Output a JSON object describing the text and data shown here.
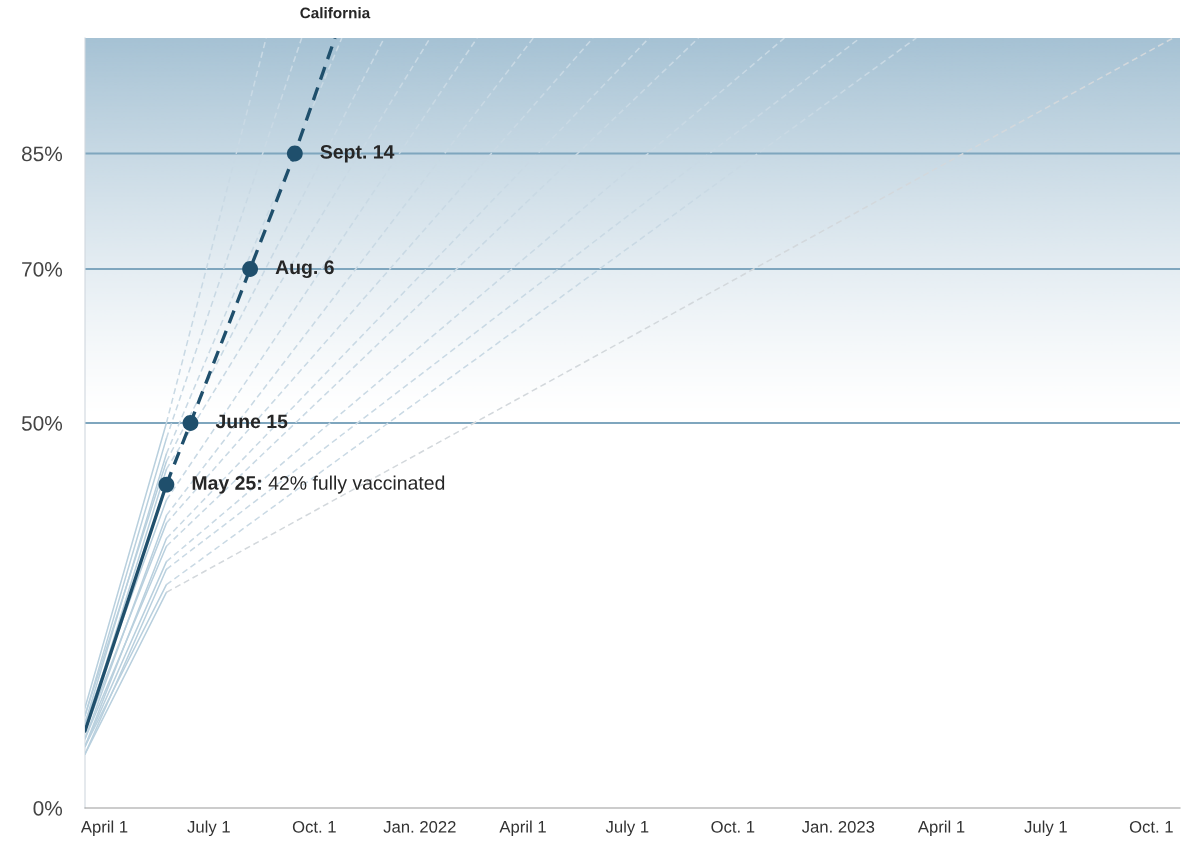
{
  "chart_data": {
    "type": "line",
    "xlim": [
      "2021-03-15",
      "2023-10-26"
    ],
    "xticks": [
      {
        "value": "2021-04-01",
        "label": "April 1"
      },
      {
        "value": "2021-07-01",
        "label": "July 1"
      },
      {
        "value": "2021-10-01",
        "label": "Oct. 1"
      },
      {
        "value": "2022-01-01",
        "label": "Jan. 2022"
      },
      {
        "value": "2022-04-01",
        "label": "April 1"
      },
      {
        "value": "2022-07-01",
        "label": "July 1"
      },
      {
        "value": "2022-10-01",
        "label": "Oct. 1"
      },
      {
        "value": "2023-01-01",
        "label": "Jan. 2023"
      },
      {
        "value": "2023-04-01",
        "label": "April 1"
      },
      {
        "value": "2023-07-01",
        "label": "July 1"
      },
      {
        "value": "2023-10-01",
        "label": "Oct. 1"
      }
    ],
    "ylim": [
      0,
      100
    ],
    "yticks": [
      {
        "value": 0,
        "label": "0%"
      },
      {
        "value": 50,
        "label": "50%"
      },
      {
        "value": 70,
        "label": "70%"
      },
      {
        "value": 85,
        "label": "85%"
      }
    ],
    "grid": false,
    "legend": false,
    "bands": [
      {
        "axis": "y",
        "from": 50,
        "to": 100,
        "color": "#a6c2d4"
      }
    ],
    "ref_lines": [
      {
        "axis": "y",
        "value": 50,
        "color": "#7fa6be"
      },
      {
        "axis": "y",
        "value": 70,
        "color": "#7fa6be"
      },
      {
        "axis": "y",
        "value": 85,
        "color": "#7fa6be"
      }
    ],
    "series": [
      {
        "type": "line",
        "line_style": "solid",
        "color": "#b9d0de",
        "x": [
          "2021-03-15",
          "2021-05-25"
        ],
        "values": [
          13,
          50
        ]
      },
      {
        "type": "line",
        "line_style": "dashed",
        "color": "#c9d9e4",
        "x": [
          "2021-05-25",
          "2021-08-20"
        ],
        "values": [
          50,
          100
        ]
      },
      {
        "type": "line",
        "line_style": "solid",
        "color": "#b9d0de",
        "x": [
          "2021-03-15",
          "2021-05-25"
        ],
        "values": [
          12,
          48
        ]
      },
      {
        "type": "line",
        "line_style": "dashed",
        "color": "#c9d9e4",
        "x": [
          "2021-05-25",
          "2021-09-20"
        ],
        "values": [
          48,
          100
        ]
      },
      {
        "type": "line",
        "line_style": "solid",
        "color": "#b9d0de",
        "x": [
          "2021-03-15",
          "2021-05-25"
        ],
        "values": [
          11,
          46
        ]
      },
      {
        "type": "line",
        "line_style": "dashed",
        "color": "#c9d9e4",
        "x": [
          "2021-05-25",
          "2021-10-25"
        ],
        "values": [
          46,
          100
        ]
      },
      {
        "type": "line",
        "line_style": "solid",
        "color": "#b9d0de",
        "x": [
          "2021-03-15",
          "2021-05-25"
        ],
        "values": [
          12,
          45
        ]
      },
      {
        "type": "line",
        "line_style": "dashed",
        "color": "#c9d9e4",
        "x": [
          "2021-05-25",
          "2021-12-01"
        ],
        "values": [
          45,
          100
        ]
      },
      {
        "type": "line",
        "line_style": "solid",
        "color": "#b9d0de",
        "x": [
          "2021-03-15",
          "2021-05-25"
        ],
        "values": [
          10,
          44
        ]
      },
      {
        "type": "line",
        "line_style": "dashed",
        "color": "#c9d9e4",
        "x": [
          "2021-05-25",
          "2022-01-10"
        ],
        "values": [
          44,
          100
        ]
      },
      {
        "type": "line",
        "line_style": "solid",
        "color": "#b9d0de",
        "x": [
          "2021-03-15",
          "2021-05-25"
        ],
        "values": [
          11,
          40
        ]
      },
      {
        "type": "line",
        "line_style": "dashed",
        "color": "#c9d9e4",
        "x": [
          "2021-05-25",
          "2022-02-20"
        ],
        "values": [
          40,
          100
        ]
      },
      {
        "type": "line",
        "line_style": "solid",
        "color": "#b9d0de",
        "x": [
          "2021-03-15",
          "2021-05-25"
        ],
        "values": [
          9,
          38
        ]
      },
      {
        "type": "line",
        "line_style": "dashed",
        "color": "#c9d9e4",
        "x": [
          "2021-05-25",
          "2022-04-10"
        ],
        "values": [
          38,
          100
        ]
      },
      {
        "type": "line",
        "line_style": "solid",
        "color": "#b9d0de",
        "x": [
          "2021-03-15",
          "2021-05-25"
        ],
        "values": [
          10,
          37
        ]
      },
      {
        "type": "line",
        "line_style": "dashed",
        "color": "#c9d9e4",
        "x": [
          "2021-05-25",
          "2022-06-01"
        ],
        "values": [
          37,
          100
        ]
      },
      {
        "type": "line",
        "line_style": "solid",
        "color": "#b9d0de",
        "x": [
          "2021-03-15",
          "2021-05-25"
        ],
        "values": [
          8,
          35
        ]
      },
      {
        "type": "line",
        "line_style": "dashed",
        "color": "#c9d9e4",
        "x": [
          "2021-05-25",
          "2022-07-20"
        ],
        "values": [
          35,
          100
        ]
      },
      {
        "type": "line",
        "line_style": "solid",
        "color": "#b9d0de",
        "x": [
          "2021-03-15",
          "2021-05-25"
        ],
        "values": [
          9,
          34
        ]
      },
      {
        "type": "line",
        "line_style": "dashed",
        "color": "#c9d9e4",
        "x": [
          "2021-05-25",
          "2022-09-01"
        ],
        "values": [
          34,
          100
        ]
      },
      {
        "type": "line",
        "line_style": "solid",
        "color": "#b9d0de",
        "x": [
          "2021-03-15",
          "2021-05-25"
        ],
        "values": [
          8,
          32
        ]
      },
      {
        "type": "line",
        "line_style": "dashed",
        "color": "#c9d9e4",
        "x": [
          "2021-05-25",
          "2022-11-15"
        ],
        "values": [
          32,
          100
        ]
      },
      {
        "type": "line",
        "line_style": "solid",
        "color": "#b9d0de",
        "x": [
          "2021-03-15",
          "2021-05-25"
        ],
        "values": [
          7,
          31
        ]
      },
      {
        "type": "line",
        "line_style": "dashed",
        "color": "#c9d9e4",
        "x": [
          "2021-05-25",
          "2023-01-20"
        ],
        "values": [
          31,
          100
        ]
      },
      {
        "type": "line",
        "line_style": "solid",
        "color": "#b9d0de",
        "x": [
          "2021-03-15",
          "2021-05-25"
        ],
        "values": [
          8,
          29
        ]
      },
      {
        "type": "line",
        "line_style": "dashed",
        "color": "#c9d9e4",
        "x": [
          "2021-05-25",
          "2023-03-10"
        ],
        "values": [
          29,
          100
        ]
      },
      {
        "type": "line",
        "line_style": "solid",
        "color": "#b9d0de",
        "x": [
          "2021-03-15",
          "2021-05-25"
        ],
        "values": [
          7,
          28
        ]
      },
      {
        "type": "line",
        "line_style": "dashed",
        "color": "#d3d8dc",
        "x": [
          "2021-05-25",
          "2023-10-20"
        ],
        "values": [
          28,
          100
        ]
      },
      {
        "type": "line",
        "line_style": "solid",
        "color": "#1f4f6c",
        "x": [
          "2021-03-15",
          "2021-05-25"
        ],
        "values": [
          10,
          42
        ]
      },
      {
        "type": "line",
        "line_style": "dashed",
        "name": "California",
        "color": "#1f4f6c",
        "x": [
          "2021-05-25",
          "2021-06-15",
          "2021-08-06",
          "2021-09-14",
          "2021-10-19"
        ],
        "values": [
          42,
          50,
          70,
          85,
          100
        ]
      },
      {
        "type": "scatter",
        "marker": "circle",
        "color": "#1f4f6c",
        "x": [
          "2021-05-25",
          "2021-06-15",
          "2021-08-06",
          "2021-09-14"
        ],
        "values": [
          42,
          50,
          70,
          85
        ]
      }
    ],
    "annotations": [
      {
        "text": "May 25: 42% fully vaccinated",
        "x": "2021-05-25",
        "y": 42
      },
      {
        "text": "June 15",
        "x": "2021-06-15",
        "y": 50
      },
      {
        "text": "Aug. 6",
        "x": "2021-08-06",
        "y": 70
      },
      {
        "text": "Sept. 14",
        "x": "2021-09-14",
        "y": 85
      }
    ]
  }
}
